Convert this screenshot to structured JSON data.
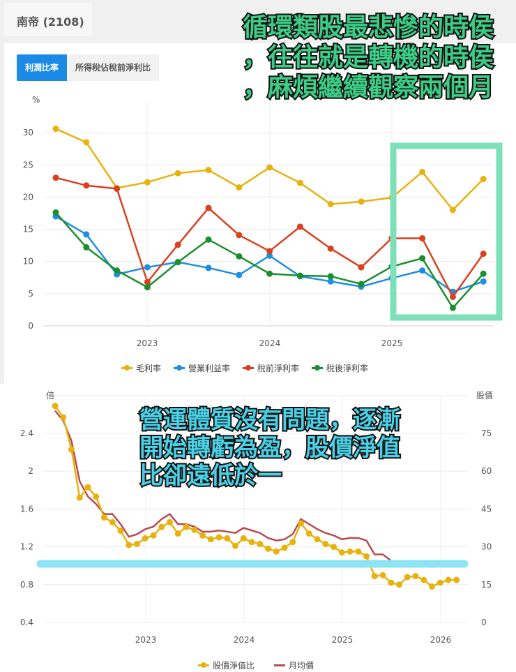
{
  "header": {
    "title": "南帝 (2108)"
  },
  "tabs": [
    {
      "label": "利潤比率",
      "active": true
    },
    {
      "label": "所得稅佔稅前淨利比",
      "active": false
    }
  ],
  "annotations": {
    "top_lines": [
      "循環類股最悲慘的時侯",
      "，往往就是轉機的時侯",
      "，麻煩繼續觀察兩個月"
    ],
    "bottom_lines": [
      "營運體質沒有問題，逐漸",
      "開始轉虧為盈，股價淨值",
      "比卻遠低於一"
    ],
    "highlight_box_color": "#7ee0b8",
    "highlight_line_color": "#8ce4f4"
  },
  "chart_data": [
    {
      "type": "line",
      "title": "利潤比率",
      "ylabel": "%",
      "ylim": [
        0,
        35
      ],
      "yticks": [
        0,
        5,
        10,
        15,
        20,
        25,
        30
      ],
      "xticks": [
        "2023",
        "2024",
        "2025"
      ],
      "x": [
        "2022Q1",
        "2022Q2",
        "2022Q3",
        "2022Q4",
        "2023Q1",
        "2023Q2",
        "2023Q3",
        "2023Q4",
        "2024Q1",
        "2024Q2",
        "2024Q3",
        "2024Q4",
        "2025Q1",
        "2025Q2",
        "2025Q3"
      ],
      "series": [
        {
          "name": "毛利率",
          "color": "#e8b20e",
          "values": [
            30.6,
            28.5,
            21.4,
            22.3,
            23.7,
            24.2,
            21.5,
            24.6,
            22.2,
            18.9,
            19.3,
            19.9,
            23.9,
            18.0,
            22.8
          ]
        },
        {
          "name": "營業利益率",
          "color": "#1e8fe0",
          "values": [
            17.0,
            14.2,
            8.0,
            9.1,
            9.9,
            9.0,
            7.9,
            10.9,
            7.7,
            6.9,
            6.1,
            7.4,
            8.6,
            5.3,
            6.9
          ]
        },
        {
          "name": "稅前淨利率",
          "color": "#d9401e",
          "values": [
            23.0,
            21.8,
            21.3,
            6.8,
            12.6,
            18.3,
            14.1,
            11.6,
            15.4,
            12.0,
            9.1,
            13.6,
            13.6,
            4.5,
            11.2
          ]
        },
        {
          "name": "稅後淨利率",
          "color": "#1a8f2e",
          "values": [
            17.6,
            12.2,
            8.6,
            6.0,
            9.9,
            13.4,
            10.8,
            8.1,
            7.8,
            7.7,
            6.5,
            9.2,
            10.5,
            2.8,
            8.1
          ]
        }
      ],
      "legend_position": "bottom",
      "grid": true
    },
    {
      "type": "line",
      "title": "股價淨值比",
      "ylabel": "倍",
      "ylabel_right": "股價",
      "ylim": [
        0.4,
        2.8
      ],
      "ylim_right": [
        0,
        90
      ],
      "yticks": [
        0.4,
        0.8,
        1.2,
        1.6,
        2,
        2.4
      ],
      "yticks_right": [
        0,
        15,
        30,
        45,
        60,
        75
      ],
      "xticks": [
        "2023",
        "2024",
        "2025",
        "2026"
      ],
      "series": [
        {
          "name": "股價淨值比",
          "color": "#e8b20e",
          "axis": "left",
          "values": [
            2.69,
            2.57,
            2.23,
            1.72,
            1.83,
            1.73,
            1.51,
            1.46,
            1.37,
            1.22,
            1.23,
            1.29,
            1.32,
            1.41,
            1.46,
            1.34,
            1.41,
            1.38,
            1.32,
            1.28,
            1.3,
            1.29,
            1.21,
            1.29,
            1.25,
            1.23,
            1.18,
            1.15,
            1.19,
            1.25,
            1.45,
            1.34,
            1.28,
            1.23,
            1.2,
            1.14,
            1.15,
            1.15,
            1.1,
            0.89,
            0.9,
            0.82,
            0.8,
            0.88,
            0.89,
            0.85,
            0.78,
            0.82,
            0.85,
            0.85
          ]
        },
        {
          "name": "月均價",
          "color": "#b84a52",
          "axis": "right",
          "values": [
            84,
            80,
            72,
            56,
            50,
            47,
            43,
            43,
            39,
            34,
            35,
            37,
            38,
            41,
            43,
            39,
            39,
            38,
            36,
            36,
            36.5,
            36,
            35.5,
            37.5,
            36.5,
            35.5,
            33.5,
            32.5,
            33,
            35,
            41,
            39,
            37,
            35.5,
            34.5,
            33,
            33.5,
            33.5,
            32.5,
            27,
            27,
            24.5,
            24,
            24,
            24.5,
            23.5,
            22,
            23,
            24,
            24
          ]
        }
      ],
      "legend_position": "bottom",
      "grid": true
    }
  ]
}
